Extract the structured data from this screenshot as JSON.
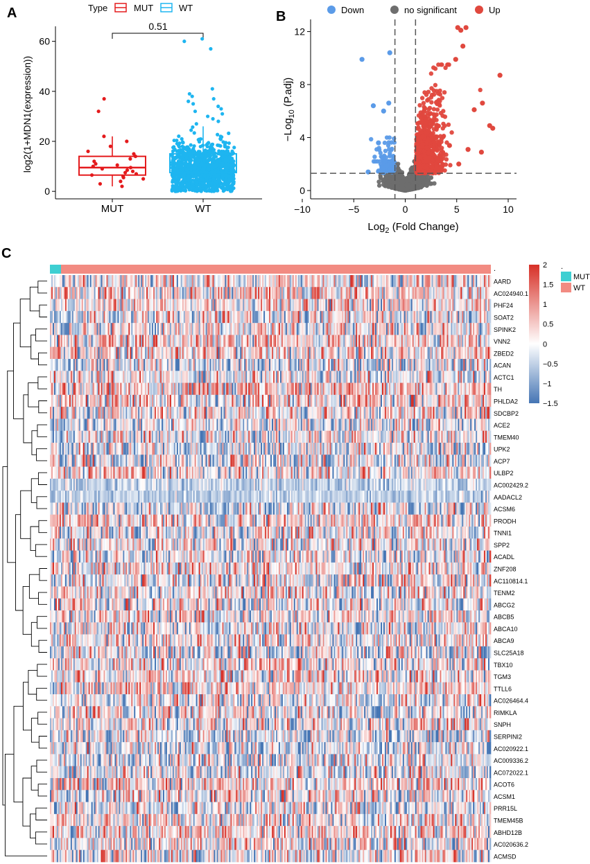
{
  "panels": {
    "a": "A",
    "b": "B",
    "c": "C"
  },
  "colors": {
    "mut": "#E41A1C",
    "wt": "#1EB5F0",
    "down": "#5B9BE8",
    "ns": "#6E6E6E",
    "up": "#E0483E",
    "heat_high": "#D73027",
    "heat_mid": "#FFFFFF",
    "heat_low": "#4575B4",
    "ann_mut": "#3ECFD2",
    "ann_wt": "#F28B82"
  },
  "chart_data": [
    {
      "id": "A",
      "type": "box",
      "legend_title": "Type",
      "legend": [
        "MUT",
        "WT"
      ],
      "categories": [
        "MUT",
        "WT"
      ],
      "ylabel": "log2(1+MDN1(expression))",
      "xlabel": "",
      "ylim": [
        -3,
        66
      ],
      "yticks": [
        0,
        20,
        40,
        60
      ],
      "annotation": "0.51",
      "groups": [
        {
          "name": "MUT",
          "q1": 6.5,
          "median": 9.5,
          "q3": 14,
          "whisker_low": 2,
          "whisker_high": 22,
          "points": [
            2,
            3,
            4,
            5,
            5.5,
            6,
            6.5,
            7,
            7.5,
            8,
            8.5,
            9,
            9.5,
            10,
            10.5,
            11,
            12,
            13,
            14,
            15,
            16,
            18,
            20,
            22,
            32,
            37
          ]
        },
        {
          "name": "WT",
          "q1": 7.5,
          "median": 10.5,
          "q3": 15,
          "whisker_low": 0.5,
          "whisker_high": 26,
          "outliers": [
            27,
            28,
            29,
            30,
            31,
            32,
            33,
            34,
            35,
            36,
            37,
            38,
            39,
            41,
            57,
            60,
            61
          ]
        }
      ]
    },
    {
      "id": "B",
      "type": "scatter",
      "legend": [
        "Down",
        "no significant",
        "Up"
      ],
      "xlabel": "Log2 (Fold Change)",
      "ylabel": "−Log10 (P.adj)",
      "xlim": [
        -10,
        10
      ],
      "ylim": [
        0,
        12.5
      ],
      "xticks": [
        -10,
        -5,
        0,
        5,
        10
      ],
      "yticks": [
        0,
        4,
        8,
        12
      ],
      "thresholds": {
        "fc": [
          -1,
          1
        ],
        "padj": 1.3
      },
      "highlight_down": [
        [
          -4.2,
          9.9
        ],
        [
          -1.5,
          10.4
        ],
        [
          -3.1,
          6.4
        ],
        [
          -2.1,
          6.0
        ],
        [
          -1.6,
          6.6
        ],
        [
          -3.6,
          1.4
        ],
        [
          -2.6,
          3.6
        ],
        [
          -2.1,
          2.5
        ]
      ],
      "highlight_up": [
        [
          5.1,
          12.3
        ],
        [
          5.9,
          12.3
        ],
        [
          5.4,
          12.1
        ],
        [
          9.2,
          8.7
        ],
        [
          7.5,
          6.6
        ],
        [
          8.2,
          4.9
        ],
        [
          8.5,
          4.7
        ],
        [
          7.4,
          2.9
        ],
        [
          5.6,
          10.9
        ],
        [
          4.9,
          9.9
        ],
        [
          6.7,
          6.1
        ],
        [
          5.2,
          2.0
        ],
        [
          4.3,
          3.4
        ],
        [
          6.1,
          3.1
        ]
      ]
    },
    {
      "id": "C",
      "type": "heatmap",
      "rows": [
        "AARD",
        "AC024940.1",
        "PHF24",
        "SOAT2",
        "SPINK2",
        "VNN2",
        "ZBED2",
        "ACAN",
        "ACTC1",
        "TH",
        "PHLDA2",
        "SDCBP2",
        "ACE2",
        "TMEM40",
        "UPK2",
        "ACP7",
        "ULBP2",
        "AC002429.2",
        "AADACL2",
        "ACSM6",
        "PRODH",
        "TNNI1",
        "SPP2",
        "ACADL",
        "ZNF208",
        "AC110814.1",
        "TENM2",
        "ABCG2",
        "ABCB5",
        "ABCA10",
        "ABCA9",
        "SLC25A18",
        "TBX10",
        "TGM3",
        "TTLL6",
        "AC026464.4",
        "RIMKLA",
        "SNPH",
        "SERPINI2",
        "AC020922.1",
        "AC009336.2",
        "AC072022.1",
        "ACOT6",
        "ACSM1",
        "PRR15L",
        "TMEM45B",
        "ABHD12B",
        "AC020636.2",
        "ACMSD"
      ],
      "row_bias": [
        0.1,
        0.35,
        0.2,
        -0.1,
        0.15,
        0.25,
        0.3,
        -0.2,
        0.05,
        0.45,
        0.2,
        0.1,
        -0.15,
        0.0,
        -0.2,
        -0.1,
        0.15,
        -0.45,
        -0.5,
        -0.25,
        0.35,
        -0.05,
        0.05,
        0.0,
        0.2,
        0.1,
        0.05,
        -0.05,
        0.1,
        0.0,
        0.1,
        -0.15,
        0.15,
        0.2,
        0.3,
        -0.05,
        0.0,
        0.1,
        -0.3,
        -0.2,
        -0.15,
        0.0,
        0.2,
        0.05,
        -0.15,
        0.15,
        0.3,
        0.1,
        0.0
      ],
      "annotation_label": ".",
      "annotation_legend": [
        "MUT",
        "WT"
      ],
      "colorbar": {
        "min": -1.5,
        "max": 2,
        "ticks": [
          "2",
          "1.5",
          "1",
          "0.5",
          "0",
          "−0.5",
          "−1",
          "−1.5"
        ]
      }
    }
  ]
}
